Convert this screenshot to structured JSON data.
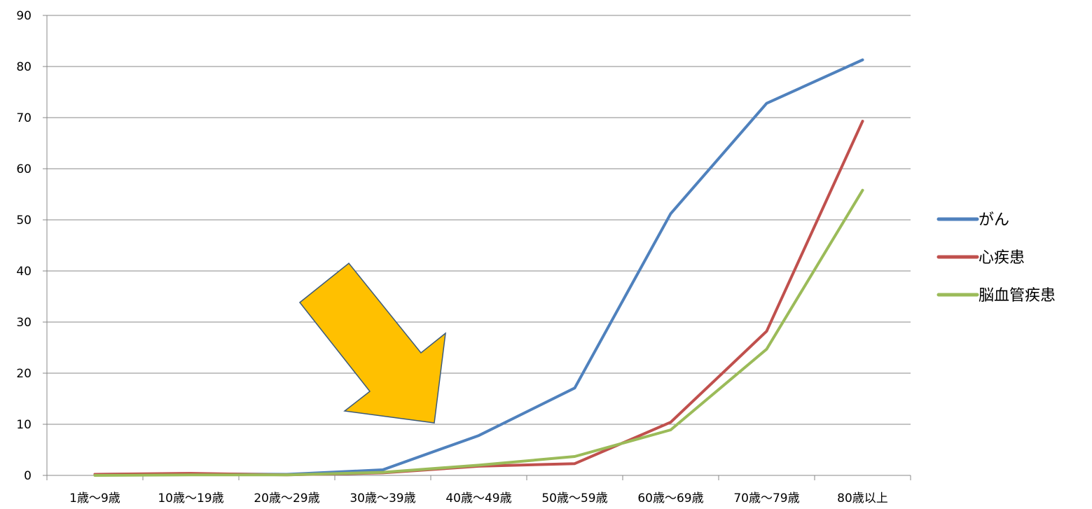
{
  "chart_data": {
    "type": "line",
    "title": "",
    "xlabel": "",
    "ylabel": "",
    "ylim": [
      0,
      90
    ],
    "yticks": [
      0,
      10,
      20,
      30,
      40,
      50,
      60,
      70,
      80,
      90
    ],
    "grid": true,
    "legend_position": "right",
    "categories": [
      "1歳〜9歳",
      "10歳〜19歳",
      "20歳〜29歳",
      "30歳〜39歳",
      "40歳〜49歳",
      "50歳〜59歳",
      "60歳〜69歳",
      "70歳〜79歳",
      "80歳以上"
    ],
    "series": [
      {
        "name": "がん",
        "color": "#4F81BD",
        "values": [
          0.2,
          0.3,
          0.2,
          1.1,
          7.8,
          17.1,
          51.2,
          72.8,
          81.3
        ]
      },
      {
        "name": "心疾患",
        "color": "#C0504D",
        "values": [
          0.2,
          0.4,
          0.1,
          0.5,
          1.8,
          2.3,
          10.4,
          28.2,
          69.3
        ]
      },
      {
        "name": "脳血管疾患",
        "color": "#9BBB59",
        "values": [
          0.0,
          0.1,
          0.1,
          0.6,
          2.0,
          3.7,
          8.9,
          24.7,
          55.8
        ]
      }
    ],
    "annotation": {
      "shape": "arrow",
      "color": "#FFC000",
      "outline": "#3B5A7A"
    }
  }
}
